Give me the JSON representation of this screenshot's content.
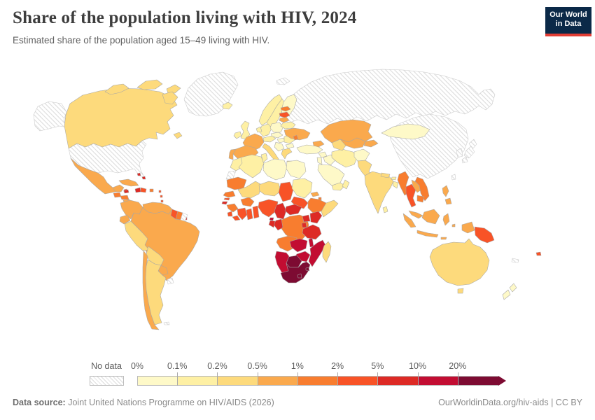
{
  "header": {
    "title": "Share of the population living with HIV, 2024",
    "subtitle": "Estimated share of the population aged 15–49 living with HIV.",
    "logo_line1": "Our World",
    "logo_line2": "in Data"
  },
  "colors": {
    "logo_navy": "#0b2948",
    "logo_red": "#e23d34",
    "border_grey": "#a6a6a6",
    "no_data_stripe": "#dcdcdc",
    "text_dark": "#3d3d3d",
    "text_grey": "#616161",
    "footer_grey": "#8a8a8a"
  },
  "legend": {
    "no_data_label": "No data"
  },
  "chart_data": {
    "type": "heatmap",
    "subtype": "choropleth-world-map",
    "title": "Share of the population living with HIV, 2024",
    "unit": "%",
    "bins": {
      "labels": [
        "0%",
        "0.1%",
        "0.2%",
        "0.5%",
        "1%",
        "2%",
        "5%",
        "10%",
        "20%"
      ],
      "colors": [
        "#fef9c8",
        "#fef0a4",
        "#fdda7c",
        "#faa94d",
        "#f87d2f",
        "#f85327",
        "#dd2a25",
        "#c20d32",
        "#7d0b32"
      ],
      "open_ended_top": true
    },
    "countries": {
      "usa": "no_data",
      "greenland": "no_data",
      "russia": "no_data",
      "china": "no_data",
      "japan": "no_data",
      "korea": "no_data",
      "taiwan": "no_data",
      "french_guiana": "no_data",
      "western_sahara": "no_data",
      "uruguay": "no_data",
      "falkland_islands": "no_data",
      "svalbard": "no_data",
      "new_caledonia": "no_data",
      "canada": 2,
      "iceland": 1,
      "mexico": 3,
      "belize": 5,
      "guatemala": 4,
      "honduras": 4,
      "nicaragua": 3,
      "costa_rica": 4,
      "panama": 5,
      "cuba": 3,
      "jamaica": 6,
      "haiti": 6,
      "dominican_republic": 5,
      "puerto_rico": 4,
      "bahamas": 6,
      "lesser_antilles": 5,
      "trinidad_tobago": 6,
      "colombia": 3,
      "venezuela": 3,
      "guyana": 5,
      "suriname": 4,
      "ecuador": 3,
      "peru": 2,
      "brazil": 3,
      "bolivia": 2,
      "paraguay": 3,
      "chile": 3,
      "argentina": 2,
      "norway": 1,
      "sweden": 1,
      "finland": 0,
      "denmark": 1,
      "uk": 1,
      "ireland": 1,
      "france": 3,
      "spain": 3,
      "portugal": 3,
      "italy": 2,
      "germany": 1,
      "benelux": 1,
      "switzerland_austria": 1,
      "poland": 0,
      "czech_slovakia": 0,
      "hungary": 0,
      "romania": 1,
      "bulgaria": 0,
      "balkans": 0,
      "greece": 2,
      "ukraine": 3,
      "moldova": 4,
      "belarus": 1,
      "lithuania": 3,
      "latvia": 5,
      "estonia": 4,
      "turkey": 0,
      "caucasus": 3,
      "syria": 0,
      "iraq": 0,
      "israel_jordan": 0,
      "saudi_arabia": 0,
      "yemen": 1,
      "oman": 1,
      "iran": 1,
      "afghanistan": 0,
      "pakistan": 2,
      "india": 2,
      "sri_lanka": 1,
      "nepal": 2,
      "bangladesh": 1,
      "bhutan": 1,
      "kazakhstan": 3,
      "central_asia": 3,
      "turkmenistan": 2,
      "kyrgyzstan_tajikistan": 3,
      "mongolia": 0,
      "myanmar": 4,
      "thailand": 5,
      "laos": 3,
      "vietnam": 4,
      "cambodia": 4,
      "malaysia": 3,
      "indonesia": 3,
      "philippines": 3,
      "papua_new_guinea": 5,
      "fiji": 5,
      "australia": 2,
      "new_zealand": 0,
      "morocco": 1,
      "algeria": 1,
      "tunisia": 1,
      "libya": 0,
      "egypt": 0,
      "mauritania": 4,
      "mali": 2,
      "niger": 2,
      "chad": 5,
      "sudan": 1,
      "eritrea": 3,
      "djibouti": 4,
      "ethiopia": 4,
      "somalia": 2,
      "south_sudan": 5,
      "senegal": 4,
      "gambia": 5,
      "guinea_bissau": 6,
      "guinea": 4,
      "sierra_leone": 5,
      "liberia": 5,
      "cote_divoire": 5,
      "ghana": 5,
      "togo_benin": 5,
      "burkina_faso": 4,
      "nigeria": 5,
      "cameroon": 6,
      "central_african_republic": 6,
      "drc": 4,
      "congo": 6,
      "gabon": 6,
      "equatorial_guinea": 7,
      "uganda": 6,
      "kenya": 6,
      "rwanda_burundi": 6,
      "tanzania": 6,
      "angola": 4,
      "zambia": 7,
      "malawi": 7,
      "mozambique": 7,
      "zimbabwe": 7,
      "botswana": 8,
      "namibia": 7,
      "south_africa": 8,
      "lesotho": 8,
      "eswatini": 8,
      "madagascar": 2
    }
  },
  "footer": {
    "source_label": "Data source:",
    "source_text": "Joint United Nations Programme on HIV/AIDS (2026)",
    "link": "OurWorldinData.org/hiv-aids",
    "separator": " | ",
    "license": "CC BY"
  }
}
